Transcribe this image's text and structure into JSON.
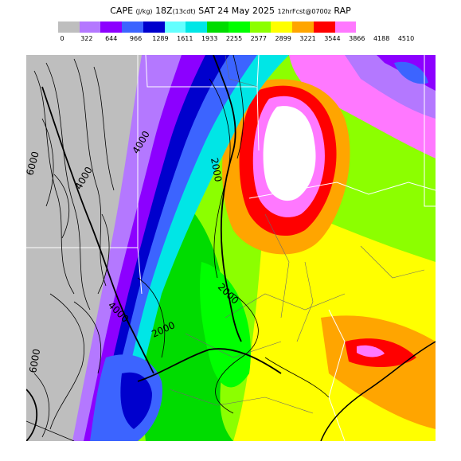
{
  "title": {
    "field": "CAPE",
    "units": "(J/kg)",
    "valid_hour": "18Z",
    "local_time": "(13cdt)",
    "date": "SAT 24 May 2025",
    "forecast": "12hrFcst@0700z",
    "model": "RAP"
  },
  "legend": {
    "colors": [
      "#bebebe",
      "#b478ff",
      "#8c00ff",
      "#3c64ff",
      "#0000cd",
      "#64ffff",
      "#00e6e6",
      "#00dc00",
      "#00ff00",
      "#8cff00",
      "#ffff00",
      "#ffa500",
      "#ff0000",
      "#ff78ff",
      "#ffffff"
    ],
    "ticks": [
      "0",
      "322",
      "644",
      "966",
      "1289",
      "1611",
      "1933",
      "2255",
      "2577",
      "2899",
      "3221",
      "3544",
      "3866",
      "4188",
      "4510"
    ]
  },
  "map": {
    "contour_labels": [
      {
        "text": "6000",
        "name": "contour-label-6000"
      },
      {
        "text": "4000",
        "name": "contour-label-4000-north"
      },
      {
        "text": "4000",
        "name": "contour-label-4000-west"
      },
      {
        "text": "2000",
        "name": "contour-label-2000-north"
      },
      {
        "text": "2000",
        "name": "contour-label-2000-central"
      },
      {
        "text": "4000",
        "name": "contour-label-4000-south"
      },
      {
        "text": "2000",
        "name": "contour-label-2000-south"
      },
      {
        "text": "6000",
        "name": "contour-label-6000-south"
      }
    ]
  }
}
